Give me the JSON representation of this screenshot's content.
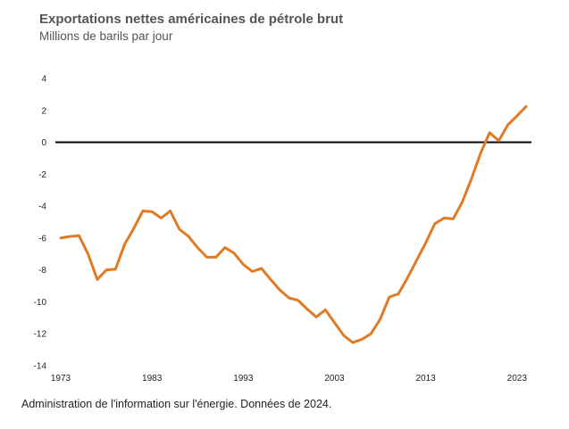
{
  "chart_data": {
    "type": "line",
    "title": "Exportations nettes américaines de pétrole brut",
    "subtitle": "Millions de barils par jour",
    "source": "Administration de l'information sur l'énergie. Données de 2024.",
    "xlabel": "",
    "ylabel": "",
    "xlim": [
      1973,
      2024
    ],
    "ylim": [
      -14,
      4
    ],
    "x_ticks": [
      1973,
      1983,
      1993,
      2003,
      2013,
      2023
    ],
    "y_ticks": [
      4,
      2,
      0,
      -2,
      -4,
      -6,
      -8,
      -10,
      -12,
      -14
    ],
    "grid": false,
    "reference_line": 0,
    "line_color": "#E07B24",
    "series": [
      {
        "x": [
          1973,
          1974,
          1975,
          1976,
          1977,
          1978,
          1979,
          1980,
          1981,
          1982,
          1983,
          1984,
          1985,
          1986,
          1987,
          1988,
          1989,
          1990,
          1991,
          1992,
          1993,
          1994,
          1995,
          1996,
          1997,
          1998,
          1999,
          2000,
          2001,
          2002,
          2003,
          2004,
          2005,
          2006,
          2007,
          2008,
          2009,
          2010,
          2011,
          2012,
          2013,
          2014,
          2015,
          2016,
          2017,
          2018,
          2019,
          2020,
          2021,
          2022,
          2023,
          2024
        ],
        "values": [
          -6.0,
          -5.9,
          -5.85,
          -7.0,
          -8.6,
          -8.0,
          -7.95,
          -6.4,
          -5.4,
          -4.3,
          -4.35,
          -4.75,
          -4.3,
          -5.45,
          -5.9,
          -6.6,
          -7.2,
          -7.2,
          -6.6,
          -6.95,
          -7.65,
          -8.1,
          -7.9,
          -8.6,
          -9.25,
          -9.75,
          -9.9,
          -10.45,
          -10.95,
          -10.5,
          -11.3,
          -12.1,
          -12.55,
          -12.35,
          -12.0,
          -11.1,
          -9.7,
          -9.5,
          -8.5,
          -7.4,
          -6.3,
          -5.1,
          -4.75,
          -4.8,
          -3.75,
          -2.3,
          -0.7,
          0.6,
          0.1,
          1.1,
          1.65,
          2.25
        ]
      }
    ]
  }
}
